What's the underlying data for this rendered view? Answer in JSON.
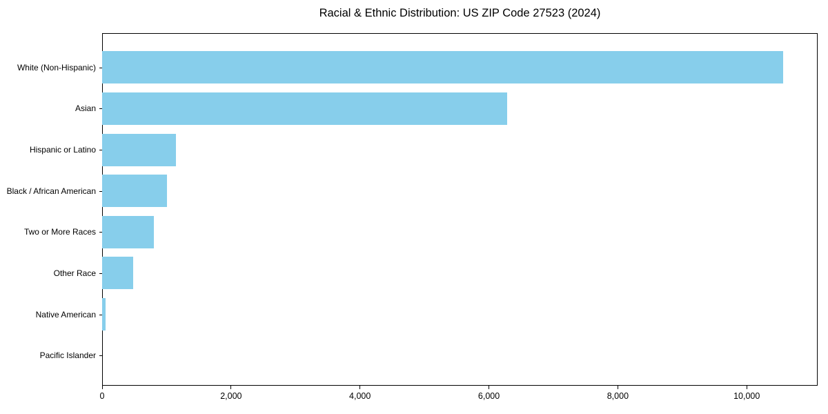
{
  "chart_data": {
    "type": "bar",
    "orientation": "horizontal",
    "title": "Racial & Ethnic Distribution: US ZIP Code 27523 (2024)",
    "categories": [
      "White (Non-Hispanic)",
      "Asian",
      "Hispanic or Latino",
      "Black / African American",
      "Two or More Races",
      "Other Race",
      "Native American",
      "Pacific Islander"
    ],
    "values": [
      10570,
      6280,
      1140,
      1010,
      800,
      480,
      50,
      0
    ],
    "xlabel": "",
    "ylabel": "",
    "xlim": [
      0,
      11100
    ],
    "xticks": {
      "values": [
        0,
        2000,
        4000,
        6000,
        8000,
        10000
      ],
      "labels": [
        "0",
        "2,000",
        "4,000",
        "6,000",
        "8,000",
        "10,000"
      ]
    },
    "grid": false,
    "legend": null,
    "colors": {
      "bar": "#87CEEB",
      "frame": "#000000",
      "text": "#000000",
      "background": "#ffffff"
    }
  }
}
